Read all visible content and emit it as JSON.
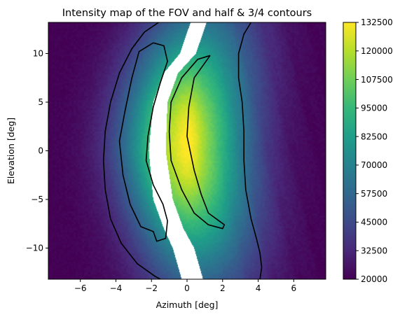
{
  "chart_data": {
    "type": "heatmap",
    "title": "Intensity map of the FOV and half & 3/4 contours",
    "xlabel": "Azimuth [deg]",
    "ylabel": "Elevation [deg]",
    "xlim": [
      -7.8,
      7.8
    ],
    "ylim": [
      -13.2,
      13.2
    ],
    "xticks": [
      -6,
      -4,
      -2,
      0,
      2,
      4,
      6
    ],
    "yticks": [
      -10,
      -5,
      0,
      5,
      10
    ],
    "xtick_labels": [
      "−6",
      "−4",
      "−2",
      "0",
      "2",
      "4",
      "6"
    ],
    "ytick_labels": [
      "−10",
      "−5",
      "0",
      "5",
      "10"
    ],
    "colormap": "viridis",
    "colorbar": {
      "range": [
        20000,
        132500
      ],
      "ticks": [
        20000,
        32500,
        45000,
        57500,
        70000,
        82500,
        95000,
        107500,
        120000,
        132500
      ],
      "tick_labels": [
        "20000",
        "32500",
        "45000",
        "57500",
        "70000",
        "82500",
        "95000",
        "107500",
        "120000",
        "132500"
      ]
    },
    "field": {
      "peak_value": 132500,
      "peak_az": -0.3,
      "peak_el": 1.5,
      "ridge_az": {
        "el": [
          -13.2,
          -10,
          -5,
          0,
          5,
          10,
          13.2
        ],
        "az": [
          0.6,
          0.4,
          0.0,
          -0.3,
          -0.15,
          0.25,
          0.6
        ]
      },
      "gap": {
        "el": [
          -13.2,
          -10,
          -8,
          -5,
          0,
          5,
          8,
          10,
          13.2
        ],
        "left": [
          -0.3,
          -0.8,
          -1.3,
          -1.9,
          -2.15,
          -1.9,
          -1.3,
          -0.4,
          0.2
        ],
        "right": [
          0.9,
          0.4,
          -0.2,
          -0.8,
          -1.2,
          -1.1,
          -0.5,
          0.5,
          1.1
        ]
      }
    },
    "contours": [
      {
        "level": "half",
        "segments": [
          [
            [
              -1.6,
              13.2
            ],
            [
              -2.4,
              12.2
            ],
            [
              -3.1,
              10.5
            ],
            [
              -3.8,
              8.0
            ],
            [
              -4.3,
              5.0
            ],
            [
              -4.6,
              2.0
            ],
            [
              -4.7,
              -1.0
            ],
            [
              -4.6,
              -4.0
            ],
            [
              -4.3,
              -7.0
            ],
            [
              -3.7,
              -9.5
            ],
            [
              -2.8,
              -11.6
            ],
            [
              -1.8,
              -12.9
            ],
            [
              -1.5,
              -13.2
            ]
          ],
          [
            [
              3.6,
              13.2
            ],
            [
              3.2,
              12.0
            ],
            [
              2.9,
              10.0
            ],
            [
              2.9,
              7.5
            ],
            [
              3.1,
              5.0
            ],
            [
              3.2,
              2.0
            ],
            [
              3.2,
              -1.0
            ],
            [
              3.3,
              -4.0
            ],
            [
              3.6,
              -7.0
            ],
            [
              3.9,
              -9.0
            ],
            [
              4.1,
              -10.5
            ],
            [
              4.2,
              -12.0
            ],
            [
              4.1,
              -13.2
            ]
          ]
        ]
      },
      {
        "level": "3/4",
        "segments": [
          [
            [
              -1.9,
              11.1
            ],
            [
              -2.7,
              10.2
            ],
            [
              -3.1,
              7.5
            ],
            [
              -3.5,
              4.0
            ],
            [
              -3.8,
              1.0
            ],
            [
              -3.6,
              -2.5
            ],
            [
              -3.2,
              -5.5
            ],
            [
              -2.6,
              -7.8
            ],
            [
              -1.9,
              -8.3
            ],
            [
              -1.7,
              -9.3
            ],
            [
              -1.2,
              -9.0
            ],
            [
              -1.1,
              -7.2
            ],
            [
              -1.35,
              -5.5
            ],
            [
              -1.9,
              -3.5
            ],
            [
              -2.3,
              -1.0
            ],
            [
              -2.2,
              1.5
            ],
            [
              -1.9,
              4.5
            ],
            [
              -1.5,
              7.0
            ],
            [
              -1.1,
              9.2
            ],
            [
              -1.3,
              10.8
            ],
            [
              -1.9,
              11.1
            ]
          ],
          [
            [
              1.3,
              9.8
            ],
            [
              0.4,
              7.5
            ],
            [
              0.1,
              4.5
            ],
            [
              0.0,
              1.5
            ],
            [
              0.4,
              -2.0
            ],
            [
              0.8,
              -4.5
            ],
            [
              1.2,
              -6.4
            ],
            [
              2.1,
              -7.6
            ],
            [
              2.0,
              -8.0
            ],
            [
              1.2,
              -7.6
            ],
            [
              0.4,
              -6.4
            ],
            [
              -0.3,
              -4.0
            ],
            [
              -0.9,
              -1.0
            ],
            [
              -1.0,
              2.0
            ],
            [
              -0.9,
              5.0
            ],
            [
              -0.3,
              7.5
            ],
            [
              0.6,
              9.4
            ],
            [
              1.3,
              9.8
            ]
          ]
        ]
      }
    ]
  }
}
